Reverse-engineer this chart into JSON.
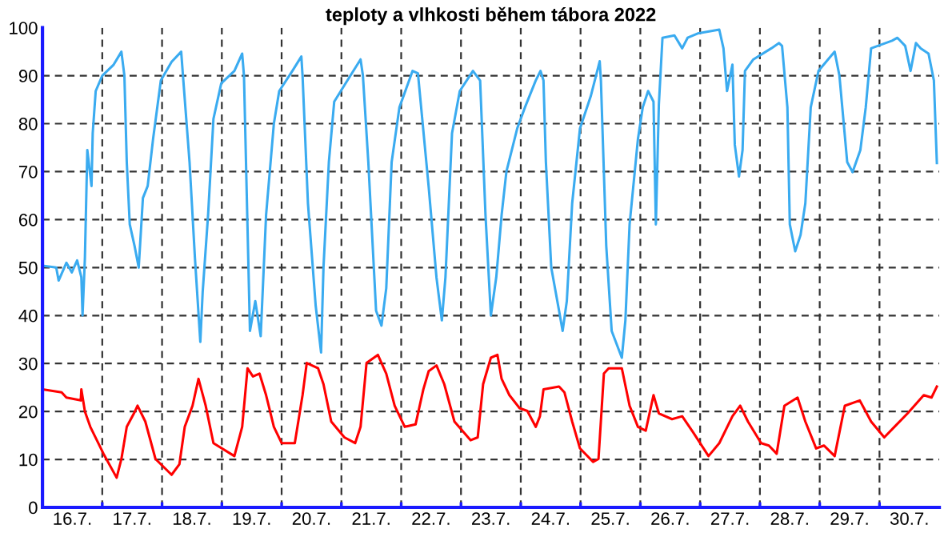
{
  "chart_data": {
    "type": "line",
    "title": "teploty a vlhkosti během tábora 2022",
    "xlim": [
      "2022-07-16T00:00",
      "2022-07-31T00:00"
    ],
    "ylim": [
      0,
      100
    ],
    "xticks": [
      {
        "value": "2022-07-16T12:00",
        "label": "16.7."
      },
      {
        "value": "2022-07-17T00:00",
        "label": null
      },
      {
        "value": "2022-07-17T12:00",
        "label": "17.7."
      },
      {
        "value": "2022-07-18T00:00",
        "label": null
      },
      {
        "value": "2022-07-18T12:00",
        "label": "18.7."
      },
      {
        "value": "2022-07-19T00:00",
        "label": null
      },
      {
        "value": "2022-07-19T12:00",
        "label": "19.7."
      },
      {
        "value": "2022-07-20T00:00",
        "label": null
      },
      {
        "value": "2022-07-20T12:00",
        "label": "20.7."
      },
      {
        "value": "2022-07-21T00:00",
        "label": null
      },
      {
        "value": "2022-07-21T12:00",
        "label": "21.7."
      },
      {
        "value": "2022-07-22T00:00",
        "label": null
      },
      {
        "value": "2022-07-22T12:00",
        "label": "22.7."
      },
      {
        "value": "2022-07-23T00:00",
        "label": null
      },
      {
        "value": "2022-07-23T12:00",
        "label": "23.7."
      },
      {
        "value": "2022-07-24T00:00",
        "label": null
      },
      {
        "value": "2022-07-24T12:00",
        "label": "24.7."
      },
      {
        "value": "2022-07-25T00:00",
        "label": null
      },
      {
        "value": "2022-07-25T12:00",
        "label": "25.7."
      },
      {
        "value": "2022-07-26T00:00",
        "label": null
      },
      {
        "value": "2022-07-26T12:00",
        "label": "26.7."
      },
      {
        "value": "2022-07-27T00:00",
        "label": null
      },
      {
        "value": "2022-07-27T12:00",
        "label": "27.7."
      },
      {
        "value": "2022-07-28T00:00",
        "label": null
      },
      {
        "value": "2022-07-28T12:00",
        "label": "28.7."
      },
      {
        "value": "2022-07-29T00:00",
        "label": null
      },
      {
        "value": "2022-07-29T12:00",
        "label": "29.7."
      },
      {
        "value": "2022-07-30T00:00",
        "label": null
      },
      {
        "value": "2022-07-30T12:00",
        "label": "30.7."
      }
    ],
    "yticks": [
      0,
      10,
      20,
      30,
      40,
      50,
      60,
      70,
      80,
      90,
      100
    ],
    "grid": true,
    "series": [
      {
        "color": "#3aabf0",
        "x": [
          "2022-07-16T00:00",
          "2022-07-16T05:31",
          "2022-07-16T06:29",
          "2022-07-16T09:36",
          "2022-07-16T11:46",
          "2022-07-16T13:55",
          "2022-07-16T15:36",
          "2022-07-16T16:05",
          "2022-07-16T17:02",
          "2022-07-16T18:00",
          "2022-07-16T19:41",
          "2022-07-16T20:10",
          "2022-07-16T21:22",
          "2022-07-17T00:00",
          "2022-07-17T04:34",
          "2022-07-17T07:41",
          "2022-07-17T08:53",
          "2022-07-17T09:50",
          "2022-07-17T11:02",
          "2022-07-17T12:58",
          "2022-07-17T14:38",
          "2022-07-17T16:19",
          "2022-07-17T18:14",
          "2022-07-17T20:24",
          "2022-07-17T23:31",
          "2022-07-18T03:50",
          "2022-07-18T07:41",
          "2022-07-18T08:24",
          "2022-07-18T11:02",
          "2022-07-18T13:12",
          "2022-07-18T15:22",
          "2022-07-18T16:19",
          "2022-07-18T18:29",
          "2022-07-18T20:38",
          "2022-07-18T23:46",
          "2022-07-19T05:02",
          "2022-07-19T08:10",
          "2022-07-19T08:53",
          "2022-07-19T11:17",
          "2022-07-19T13:26",
          "2022-07-19T15:36",
          "2022-07-19T17:46",
          "2022-07-19T20:53",
          "2022-07-19T23:02",
          "2022-07-20T04:19",
          "2022-07-20T07:55",
          "2022-07-20T08:24",
          "2022-07-20T10:34",
          "2022-07-20T13:41",
          "2022-07-20T15:50",
          "2022-07-20T16:48",
          "2022-07-20T18:58",
          "2022-07-20T21:07",
          "2022-07-21T02:24",
          "2022-07-21T07:41",
          "2022-07-21T08:38",
          "2022-07-21T10:48",
          "2022-07-21T13:55",
          "2022-07-21T16:05",
          "2022-07-21T18:00",
          "2022-07-21T20:10",
          "2022-07-21T23:17",
          "2022-07-22T04:34",
          "2022-07-22T06:43",
          "2022-07-22T11:02",
          "2022-07-22T14:10",
          "2022-07-22T16:19",
          "2022-07-22T17:46",
          "2022-07-22T20:24",
          "2022-07-22T23:31",
          "2022-07-23T04:48",
          "2022-07-23T07:41",
          "2022-07-23T09:50",
          "2022-07-23T12:00",
          "2022-07-23T14:10",
          "2022-07-23T16:19",
          "2022-07-23T18:14",
          "2022-07-23T22:34",
          "2022-07-24T01:41",
          "2022-07-24T06:00",
          "2022-07-24T07:55",
          "2022-07-24T09:07",
          "2022-07-24T10:05",
          "2022-07-24T12:14",
          "2022-07-24T15:22",
          "2022-07-24T16:48",
          "2022-07-24T18:29",
          "2022-07-24T20:38",
          "2022-07-24T23:46",
          "2022-07-25T04:05",
          "2022-07-25T07:41",
          "2022-07-25T08:10",
          "2022-07-25T10:19",
          "2022-07-25T12:29",
          "2022-07-25T16:34",
          "2022-07-25T18:00",
          "2022-07-25T19:41",
          "2022-07-25T23:02",
          "2022-07-26T00:58",
          "2022-07-26T03:07",
          "2022-07-26T05:17",
          "2022-07-26T06:14",
          "2022-07-26T07:26",
          "2022-07-26T08:53",
          "2022-07-26T13:41",
          "2022-07-26T16:48",
          "2022-07-26T18:58",
          "2022-07-26T23:02",
          "2022-07-27T07:41",
          "2022-07-27T09:22",
          "2022-07-27T10:48",
          "2022-07-27T12:58",
          "2022-07-27T13:55",
          "2022-07-27T15:36",
          "2022-07-27T17:02",
          "2022-07-27T18:00",
          "2022-07-27T21:22",
          "2022-07-28T04:34",
          "2022-07-28T07:41",
          "2022-07-28T08:53",
          "2022-07-28T11:02",
          "2022-07-28T12:00",
          "2022-07-28T14:10",
          "2022-07-28T16:19",
          "2022-07-28T18:14",
          "2022-07-28T20:24",
          "2022-07-28T23:31",
          "2022-07-29T06:00",
          "2022-07-29T07:55",
          "2022-07-29T11:02",
          "2022-07-29T13:12",
          "2022-07-29T16:19",
          "2022-07-29T18:29",
          "2022-07-29T20:38",
          "2022-07-30T05:02",
          "2022-07-30T07:12",
          "2022-07-30T10:19",
          "2022-07-30T12:29",
          "2022-07-30T14:38",
          "2022-07-30T16:34",
          "2022-07-30T19:41",
          "2022-07-30T21:50",
          "2022-07-30T23:02"
        ],
        "values": [
          50.4,
          50,
          47.3,
          51,
          49,
          51.5,
          48,
          40,
          52,
          74.5,
          67,
          78,
          86.8,
          90,
          92.3,
          95,
          90,
          72,
          59,
          54.5,
          50,
          64.5,
          67,
          76.8,
          89,
          92.9,
          95,
          90,
          72,
          52,
          34.5,
          45,
          61,
          81,
          88.4,
          91,
          94.6,
          90,
          36.8,
          43,
          35.7,
          61,
          80,
          86.8,
          91,
          94,
          90,
          63.4,
          42,
          32.3,
          50,
          72,
          84.6,
          89,
          93.4,
          90,
          72,
          41,
          37.9,
          45.7,
          72,
          83.4,
          91,
          90.5,
          66.8,
          47.9,
          39,
          48,
          78,
          86.8,
          91,
          89,
          61,
          40,
          48,
          61,
          70,
          79,
          83.4,
          89,
          91,
          89,
          72,
          50,
          41,
          36.8,
          43,
          63.4,
          79,
          85.7,
          93,
          89,
          54.5,
          36.8,
          31.2,
          39,
          59,
          76.8,
          83.4,
          86.8,
          84.6,
          59,
          84,
          97.9,
          98.4,
          95.7,
          97.9,
          98.8,
          99.6,
          95.7,
          86.8,
          92.3,
          75.6,
          69,
          74.5,
          91,
          93.4,
          95.7,
          96.8,
          96.2,
          83.4,
          59,
          53.4,
          56.8,
          63.4,
          83.4,
          91,
          95,
          90,
          72,
          69.9,
          74.5,
          83.4,
          95.7,
          97.3,
          97.9,
          96.2,
          91,
          96.8,
          95.7,
          94.6,
          89,
          71.8
        ]
      },
      {
        "color": "#ff0000",
        "x": [
          "2022-07-16T00:00",
          "2022-07-16T07:41",
          "2022-07-16T09:36",
          "2022-07-16T15:22",
          "2022-07-16T15:36",
          "2022-07-16T17:02",
          "2022-07-16T19:12",
          "2022-07-17T00:29",
          "2022-07-17T05:46",
          "2022-07-17T07:41",
          "2022-07-17T09:50",
          "2022-07-17T12:43",
          "2022-07-17T14:10",
          "2022-07-17T17:17",
          "2022-07-17T21:22",
          "2022-07-18T03:50",
          "2022-07-18T06:58",
          "2022-07-18T09:07",
          "2022-07-18T12:14",
          "2022-07-18T14:38",
          "2022-07-18T17:31",
          "2022-07-18T20:38",
          "2022-07-19T05:02",
          "2022-07-19T08:10",
          "2022-07-19T10:19",
          "2022-07-19T12:29",
          "2022-07-19T15:07",
          "2022-07-19T17:46",
          "2022-07-19T20:53",
          "2022-07-20T00:00",
          "2022-07-20T05:17",
          "2022-07-20T08:24",
          "2022-07-20T10:05",
          "2022-07-20T14:38",
          "2022-07-20T16:48",
          "2022-07-20T19:55",
          "2022-07-21T01:12",
          "2022-07-21T05:31",
          "2022-07-21T07:41",
          "2022-07-21T10:05",
          "2022-07-21T14:38",
          "2022-07-21T18:00",
          "2022-07-21T21:22",
          "2022-07-22T01:26",
          "2022-07-22T05:46",
          "2022-07-22T08:53",
          "2022-07-22T11:02",
          "2022-07-22T14:10",
          "2022-07-22T17:17",
          "2022-07-22T21:22",
          "2022-07-23T03:50",
          "2022-07-23T06:43",
          "2022-07-23T08:53",
          "2022-07-23T12:00",
          "2022-07-23T14:38",
          "2022-07-23T16:19",
          "2022-07-23T19:26",
          "2022-07-23T23:31",
          "2022-07-24T02:38",
          "2022-07-24T06:00",
          "2022-07-24T07:41",
          "2022-07-24T09:07",
          "2022-07-24T15:22",
          "2022-07-24T17:31",
          "2022-07-24T20:38",
          "2022-07-24T23:46",
          "2022-07-25T05:02",
          "2022-07-25T07:12",
          "2022-07-25T09:22",
          "2022-07-25T11:17",
          "2022-07-25T16:34",
          "2022-07-25T19:41",
          "2022-07-25T23:02",
          "2022-07-26T02:10",
          "2022-07-26T05:17",
          "2022-07-26T07:26",
          "2022-07-26T12:43",
          "2022-07-26T16:48",
          "2022-07-26T21:07",
          "2022-07-27T03:22",
          "2022-07-27T07:41",
          "2022-07-27T12:58",
          "2022-07-27T16:05",
          "2022-07-27T19:12",
          "2022-07-28T00:29",
          "2022-07-28T03:36",
          "2022-07-28T06:43",
          "2022-07-28T09:50",
          "2022-07-28T15:07",
          "2022-07-28T18:14",
          "2022-07-28T22:34",
          "2022-07-29T01:41",
          "2022-07-29T06:00",
          "2022-07-29T10:05",
          "2022-07-29T16:05",
          "2022-07-29T20:38",
          "2022-07-30T01:55",
          "2022-07-30T06:00",
          "2022-07-30T11:17",
          "2022-07-30T17:46",
          "2022-07-30T20:53",
          "2022-07-30T23:02"
        ],
        "values": [
          24.6,
          24,
          22.9,
          22.3,
          24.6,
          20,
          16.8,
          11.2,
          6.2,
          10.1,
          16.8,
          19.6,
          21.2,
          17.9,
          10.1,
          6.8,
          9,
          16.8,
          21.2,
          26.8,
          21.2,
          13.4,
          10.7,
          16.8,
          29,
          27.3,
          27.9,
          23.4,
          16.8,
          13.4,
          13.4,
          23.4,
          30.1,
          29,
          25.7,
          17.9,
          14.6,
          13.4,
          16.8,
          30.1,
          31.8,
          27.9,
          21.2,
          16.8,
          17.3,
          24.6,
          28.4,
          29.6,
          25.7,
          17.9,
          14,
          14.6,
          25.7,
          31.2,
          31.8,
          26.8,
          23.4,
          20.7,
          20.1,
          16.8,
          19,
          24.6,
          25.2,
          24,
          17.9,
          12.3,
          9.5,
          10.1,
          27.9,
          29,
          29,
          21.2,
          16.8,
          16,
          23.4,
          19.6,
          18.4,
          19,
          15.7,
          10.7,
          13.4,
          19,
          21.2,
          17.9,
          13.4,
          12.9,
          11.2,
          21.2,
          22.9,
          17.9,
          12.3,
          12.9,
          10.7,
          21.2,
          22.3,
          17.9,
          14.6,
          16.8,
          19.6,
          23.4,
          22.9,
          25.2
        ]
      }
    ]
  }
}
